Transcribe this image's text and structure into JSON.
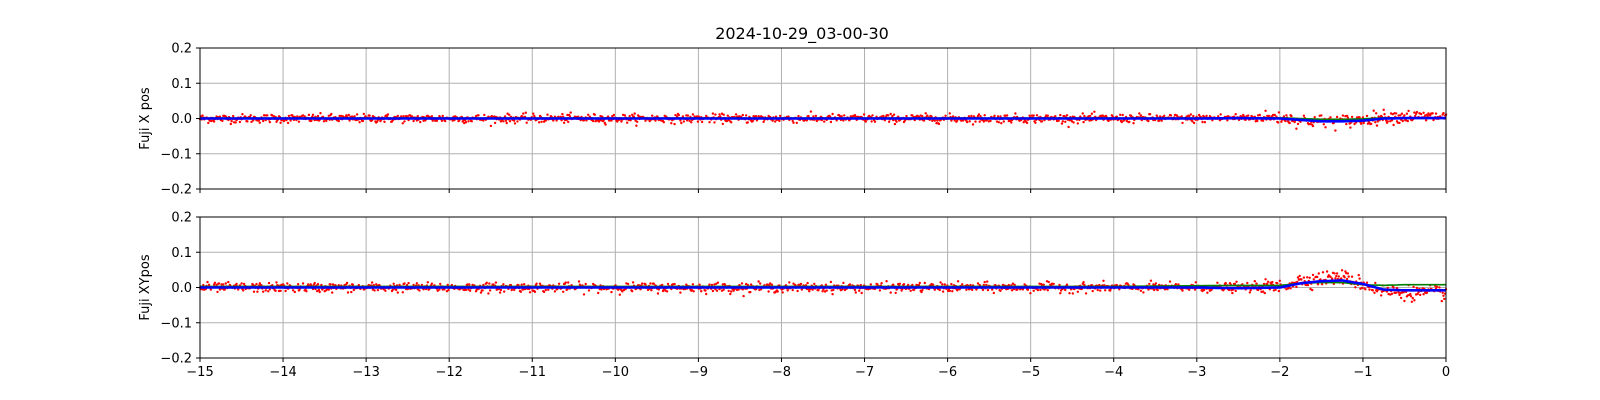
{
  "chart_data": {
    "type": "scatter",
    "title": "2024-10-29_03-00-30",
    "colors": {
      "raw": "#ff0000",
      "mean": "#0000ff",
      "median": "#008000"
    },
    "shared_x": {
      "xlim": [
        -15,
        0
      ],
      "xticks": [
        -15,
        -14,
        -13,
        -12,
        -11,
        -10,
        -9,
        -8,
        -7,
        -6,
        -5,
        -4,
        -3,
        -2,
        -1,
        0
      ],
      "xtick_labels": [
        "−15",
        "−14",
        "−13",
        "−12",
        "−11",
        "−10",
        "−9",
        "−8",
        "−7",
        "−6",
        "−5",
        "−4",
        "−3",
        "−2",
        "−1",
        "0"
      ]
    },
    "panels": [
      {
        "ylabel": "Fuji X pos",
        "ylim": [
          -0.2,
          0.2
        ],
        "yticks": [
          -0.2,
          -0.1,
          0.0,
          0.1,
          0.2
        ],
        "ytick_labels": [
          "−0.2",
          "−0.1",
          "0.0",
          "0.1",
          "0.2"
        ],
        "grid": true,
        "series": [
          {
            "role": "raw",
            "values_x": [
              -15,
              -14,
              -13,
              -12,
              -11,
              -10,
              -9,
              -8,
              -7,
              -6,
              -5,
              -4,
              -3,
              -2.5,
              -2,
              -1.75,
              -1.5,
              -1.25,
              -1,
              -0.75,
              -0.5,
              -0.25,
              0
            ],
            "values_y": [
              0.0,
              0.0,
              0.0,
              0.0,
              0.0,
              0.0,
              0.0,
              0.0,
              0.0,
              0.0,
              0.0,
              0.0,
              0.0,
              0.002,
              0.003,
              -0.005,
              -0.008,
              -0.008,
              -0.004,
              0.005,
              0.005,
              0.005,
              0.005
            ],
            "spread": 0.012,
            "spread_late": 0.018
          },
          {
            "role": "mean",
            "values_x": [
              -15,
              -14,
              -13,
              -12,
              -11,
              -10,
              -9,
              -8,
              -7,
              -6,
              -5,
              -4,
              -3,
              -2.5,
              -2,
              -1.75,
              -1.5,
              -1.25,
              -1,
              -0.75,
              -0.5,
              -0.25,
              0
            ],
            "values_y": [
              0.0,
              0.0,
              0.0,
              0.0,
              0.0,
              0.0,
              0.0,
              0.0,
              0.0,
              0.0,
              0.0,
              0.0,
              0.0,
              0.001,
              0.0,
              -0.004,
              -0.008,
              -0.008,
              -0.006,
              0.0,
              0.001,
              0.001,
              0.001
            ]
          },
          {
            "role": "median",
            "values_x": [
              -15,
              -14,
              -13,
              -12,
              -11,
              -10,
              -9,
              -8,
              -7,
              -6,
              -5,
              -4,
              -3,
              -2.5,
              -2,
              -1.75,
              -1.5,
              -1.25,
              -1,
              -0.75,
              -0.5,
              -0.25,
              0
            ],
            "values_y": [
              0.001,
              0.001,
              0.001,
              0.001,
              0.001,
              0.001,
              0.001,
              0.001,
              0.001,
              0.001,
              0.001,
              0.001,
              0.001,
              0.002,
              0.002,
              0.0,
              -0.003,
              -0.003,
              -0.001,
              0.002,
              0.002,
              0.002,
              0.002
            ]
          }
        ]
      },
      {
        "ylabel": "Fuji XYpos",
        "ylim": [
          -0.2,
          0.2
        ],
        "yticks": [
          -0.2,
          -0.1,
          0.0,
          0.1,
          0.2
        ],
        "ytick_labels": [
          "−0.2",
          "−0.1",
          "0.0",
          "0.1",
          "0.2"
        ],
        "grid": true,
        "series": [
          {
            "role": "raw",
            "values_x": [
              -15,
              -14,
              -13,
              -12,
              -11,
              -10,
              -9,
              -8,
              -7,
              -6,
              -5,
              -4,
              -3,
              -2.5,
              -2,
              -1.75,
              -1.5,
              -1.25,
              -1,
              -0.75,
              -0.5,
              -0.25,
              0
            ],
            "values_y": [
              0.0,
              0.0,
              0.0,
              0.0,
              0.0,
              0.0,
              0.0,
              0.0,
              0.0,
              0.0,
              0.0,
              0.0,
              0.0,
              0.0,
              0.002,
              0.02,
              0.025,
              0.03,
              0.01,
              -0.01,
              -0.015,
              -0.015,
              -0.015
            ],
            "spread": 0.013,
            "spread_late": 0.02
          },
          {
            "role": "mean",
            "values_x": [
              -15,
              -14,
              -13,
              -12,
              -11,
              -10,
              -9,
              -8,
              -7,
              -6,
              -5,
              -4,
              -3,
              -2.5,
              -2,
              -1.75,
              -1.5,
              -1.25,
              -1,
              -0.75,
              -0.5,
              -0.25,
              0
            ],
            "values_y": [
              0.0,
              0.0,
              0.0,
              0.0,
              0.0,
              0.0,
              0.0,
              0.0,
              0.0,
              0.0,
              0.0,
              0.0,
              0.0,
              -0.002,
              0.0,
              0.012,
              0.018,
              0.02,
              0.01,
              -0.006,
              -0.008,
              -0.008,
              -0.008
            ]
          },
          {
            "role": "median",
            "values_x": [
              -15,
              -14,
              -13,
              -12,
              -11,
              -10,
              -9,
              -8,
              -7,
              -6,
              -5,
              -4,
              -3,
              -2.5,
              -2,
              -1.75,
              -1.5,
              -1.25,
              -1,
              -0.75,
              -0.5,
              -0.25,
              0
            ],
            "values_y": [
              0.003,
              0.003,
              0.003,
              0.003,
              0.003,
              0.003,
              0.003,
              0.003,
              0.003,
              0.003,
              0.003,
              0.003,
              0.005,
              0.006,
              0.006,
              0.012,
              0.014,
              0.014,
              0.008,
              0.006,
              0.008,
              0.008,
              0.008
            ]
          }
        ]
      }
    ]
  }
}
